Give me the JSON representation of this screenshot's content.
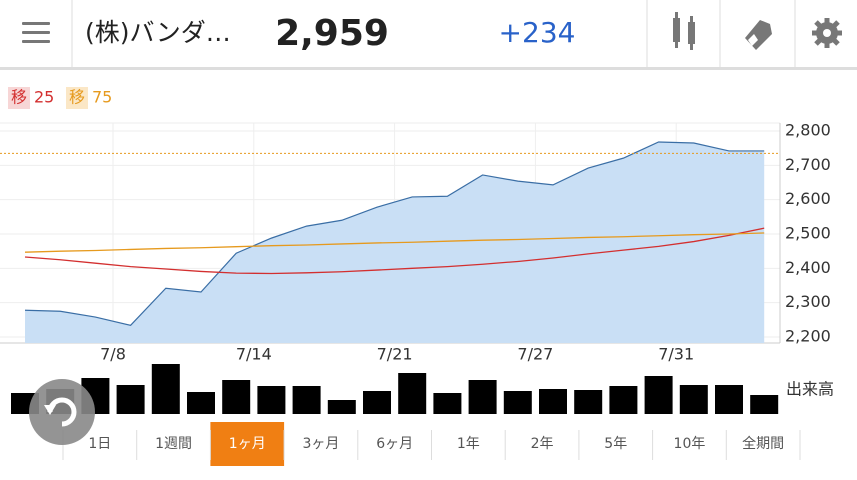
{
  "header": {
    "name": "(株)バンダ…",
    "price": "2,959",
    "change": "+234"
  },
  "legend": [
    {
      "tag": "移",
      "label": "25",
      "color": "#d32f2f",
      "bg": "#f7d6d6"
    },
    {
      "tag": "移",
      "label": "75",
      "color": "#e69a1e",
      "bg": "#fbe7c6"
    }
  ],
  "chart_data": {
    "type": "area",
    "categories": [
      null,
      null,
      "7/8",
      null,
      null,
      null,
      "7/14",
      null,
      null,
      null,
      "7/21",
      null,
      null,
      null,
      "7/27",
      null,
      null,
      null,
      "7/31",
      null,
      null,
      null
    ],
    "series": [
      {
        "name": "price",
        "color": "#3a6ea5",
        "fill": "#c9dff5",
        "values": [
          2278,
          2275,
          2258,
          2234,
          2342,
          2331,
          2444,
          2488,
          2523,
          2540,
          2578,
          2608,
          2610,
          2672,
          2654,
          2643,
          2692,
          2721,
          2768,
          2765,
          2742,
          2742
        ]
      },
      {
        "name": "25",
        "color": "#d32f2f",
        "values": [
          2433,
          2425,
          2415,
          2405,
          2398,
          2391,
          2386,
          2385,
          2387,
          2390,
          2395,
          2400,
          2405,
          2412,
          2420,
          2430,
          2442,
          2453,
          2464,
          2478,
          2496,
          2517
        ]
      },
      {
        "name": "75",
        "color": "#e69a1e",
        "values": [
          2447,
          2450,
          2452,
          2455,
          2458,
          2460,
          2463,
          2466,
          2468,
          2471,
          2474,
          2476,
          2479,
          2482,
          2484,
          2487,
          2490,
          2492,
          2495,
          2498,
          2500,
          2503
        ]
      }
    ],
    "reference_line": 2735,
    "ylim": [
      2200,
      2800
    ],
    "yticks": [
      {
        "value": 2200,
        "label": "2,200"
      },
      {
        "value": 2300,
        "label": "2,300"
      },
      {
        "value": 2400,
        "label": "2,400"
      },
      {
        "value": 2500,
        "label": "2,500"
      },
      {
        "value": 2600,
        "label": "2,600"
      },
      {
        "value": 2700,
        "label": "2,700"
      },
      {
        "value": 2800,
        "label": "2,800"
      }
    ],
    "grid": true,
    "volume": {
      "label": "出来高",
      "color": "#000000",
      "values": [
        21,
        25,
        36,
        29,
        50,
        22,
        34,
        28,
        28,
        14,
        23,
        41,
        21,
        34,
        23,
        25,
        24,
        28,
        38,
        29,
        29,
        19
      ]
    }
  },
  "tabs": {
    "items": [
      "1日",
      "1週間",
      "1ヶ月",
      "3ヶ月",
      "6ヶ月",
      "1年",
      "2年",
      "5年",
      "10年",
      "全期間"
    ],
    "active": 2
  }
}
